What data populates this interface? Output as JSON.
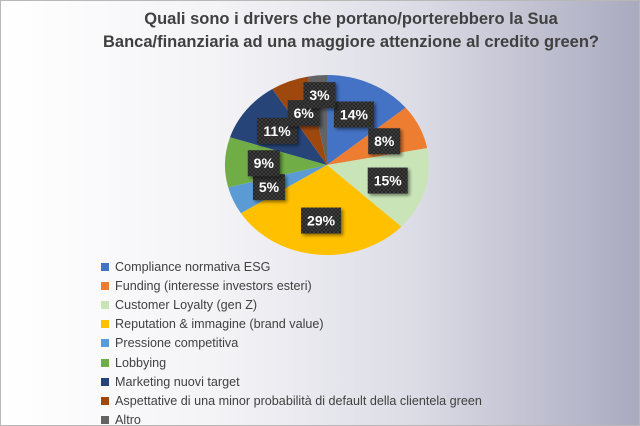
{
  "chart_data": {
    "type": "pie",
    "title": "Quali sono i drivers che portano/porterebbero la Sua Banca/finanziaria ad una maggiore attenzione al credito green?",
    "title_lines": [
      "Quali sono i drivers che portano/porterebbero la Sua",
      "Banca/finanziaria ad una maggiore attenzione al credito green?"
    ],
    "legend_position": "bottom-left",
    "slices": [
      {
        "label": "Compliance normativa ESG",
        "value": 14,
        "data_label": "14%",
        "color": "#4472C4"
      },
      {
        "label": "Funding (interesse investors esteri)",
        "value": 8,
        "data_label": "8%",
        "color": "#ED7D31"
      },
      {
        "label": "Customer Loyalty (gen Z)",
        "value": 15,
        "data_label": "15%",
        "color": "#C9E5B8"
      },
      {
        "label": "Reputation & immagine (brand value)",
        "value": 29,
        "data_label": "29%",
        "color": "#FFC000"
      },
      {
        "label": "Pressione competitiva",
        "value": 5,
        "data_label": "5%",
        "color": "#5B9BD5"
      },
      {
        "label": "Lobbying",
        "value": 9,
        "data_label": "9%",
        "color": "#70AD47"
      },
      {
        "label": "Marketing nuovi target",
        "value": 11,
        "data_label": "11%",
        "color": "#264478"
      },
      {
        "label": "Aspettative di una minor probabilità di default della clientela green",
        "value": 6,
        "data_label": "6%",
        "color": "#9E480E"
      },
      {
        "label": "Altro",
        "value": 3,
        "data_label": "3%",
        "color": "#636363"
      }
    ]
  }
}
